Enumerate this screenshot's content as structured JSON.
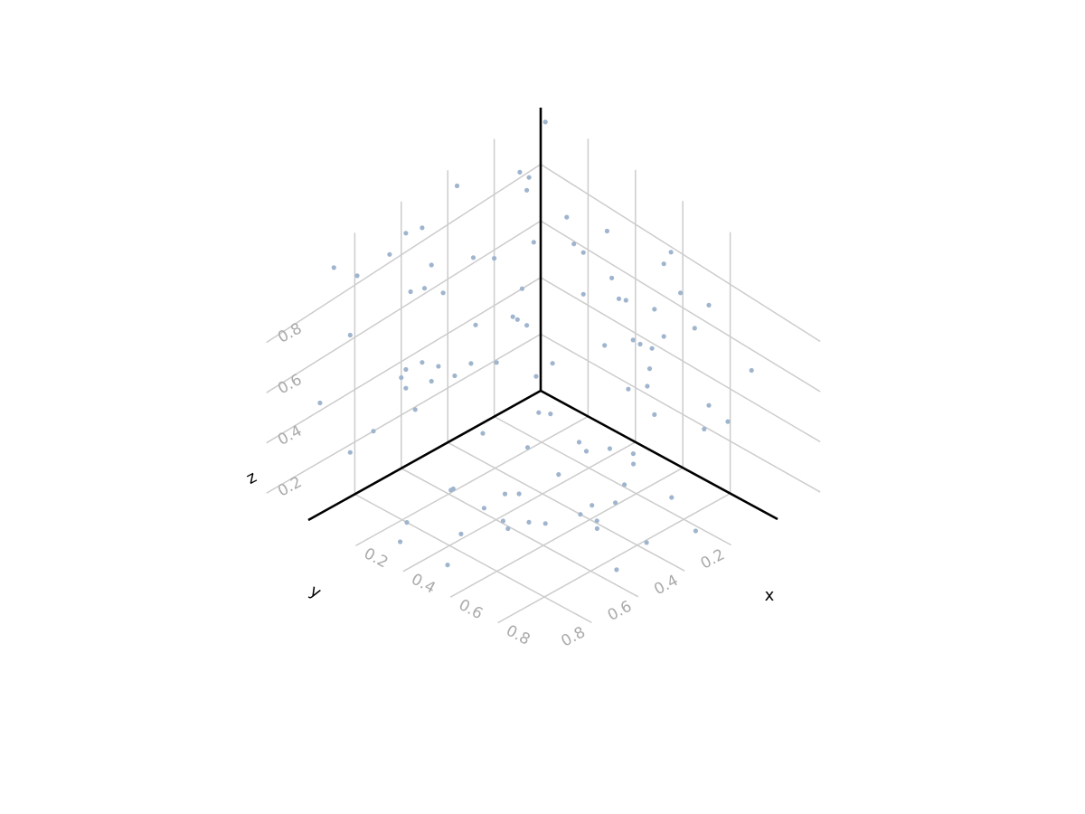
{
  "chart_data": {
    "type": "scatter3d",
    "title": "",
    "xlabel": "x",
    "ylabel": "y",
    "zlabel": "z",
    "xlim": [
      0,
      1
    ],
    "ylim": [
      0,
      1
    ],
    "zlim": [
      0,
      1
    ],
    "xticks": [
      "0.2",
      "0.4",
      "0.6",
      "0.8"
    ],
    "yticks": [
      "0.2",
      "0.4",
      "0.6",
      "0.8"
    ],
    "zticks": [
      "0.2",
      "0.4",
      "0.6",
      "0.8"
    ],
    "grid": true,
    "legend": "none",
    "point_color": "#9fb5ce",
    "points": [
      [
        0.02,
        0.0,
        0.96
      ],
      [
        0.0,
        0.05,
        0.78
      ],
      [
        0.11,
        0.0,
        0.67
      ],
      [
        0.14,
        0.0,
        0.59
      ],
      [
        0.18,
        0.0,
        0.43
      ],
      [
        0.0,
        0.06,
        0.26
      ],
      [
        0.27,
        0.0,
        0.29
      ],
      [
        0.36,
        0.0,
        0.5
      ],
      [
        0.48,
        0.0,
        0.53
      ],
      [
        0.42,
        0.0,
        0.37
      ],
      [
        0.3,
        0.0,
        0.55
      ],
      [
        0.33,
        0.0,
        0.49
      ],
      [
        0.39,
        0.0,
        0.37
      ],
      [
        0.52,
        0.0,
        0.72
      ],
      [
        0.55,
        0.0,
        0.78
      ],
      [
        0.28,
        0.0,
        0.71
      ],
      [
        0.48,
        0.0,
        0.14
      ],
      [
        0.47,
        0.0,
        0.38
      ],
      [
        0.52,
        0.0,
        0.45
      ],
      [
        0.45,
        0.0,
        0.23
      ],
      [
        0.59,
        0.0,
        0.65
      ],
      [
        0.69,
        0.0,
        0.19
      ],
      [
        0.65,
        0.0,
        0.55
      ],
      [
        0.71,
        0.0,
        0.67
      ],
      [
        0.71,
        0.0,
        0.29
      ],
      [
        0.89,
        0.0,
        0.52
      ],
      [
        0.79,
        0.0,
        0.27
      ],
      [
        0.18,
        0.0,
        0.58
      ],
      [
        0.37,
        0.0,
        0.18
      ],
      [
        0.46,
        0.0,
        0.3
      ],
      [
        0.05,
        0.0,
        0.12
      ],
      [
        0.0,
        0.03,
        0.54
      ],
      [
        0.0,
        0.72,
        0.2
      ],
      [
        0.0,
        0.29,
        0.62
      ],
      [
        0.0,
        0.47,
        0.69
      ],
      [
        0.0,
        0.42,
        0.56
      ],
      [
        0.0,
        0.2,
        0.57
      ],
      [
        0.0,
        0.28,
        0.37
      ],
      [
        0.0,
        0.58,
        0.36
      ],
      [
        0.0,
        0.95,
        0.43
      ],
      [
        0.0,
        0.82,
        0.62
      ],
      [
        0.0,
        0.6,
        0.34
      ],
      [
        0.0,
        0.56,
        0.64
      ],
      [
        0.0,
        0.5,
        0.62
      ],
      [
        0.0,
        0.51,
        0.35
      ],
      [
        0.0,
        0.44,
        0.3
      ],
      [
        0.0,
        0.47,
        0.26
      ],
      [
        0.0,
        0.82,
        0.17
      ],
      [
        0.0,
        0.3,
        0.24
      ],
      [
        0.0,
        0.54,
        0.19
      ],
      [
        0.0,
        0.58,
        0.29
      ],
      [
        0.0,
        0.19,
        0.19
      ],
      [
        0.0,
        0.37,
        0.23
      ],
      [
        0.0,
        0.08,
        0.4
      ],
      [
        0.0,
        0.1,
        0.3
      ],
      [
        0.0,
        0.12,
        0.32
      ],
      [
        0.0,
        0.02,
        0.06
      ],
      [
        0.0,
        0.89,
        0.92
      ],
      [
        0.0,
        0.79,
        0.83
      ],
      [
        0.0,
        0.65,
        0.83
      ],
      [
        0.0,
        0.58,
        0.87
      ],
      [
        0.0,
        0.51,
        0.85
      ],
      [
        0.0,
        0.09,
        0.82
      ],
      [
        0.0,
        0.06,
        0.74
      ],
      [
        0.0,
        0.36,
        0.92
      ],
      [
        0.08,
        0.09,
        0.0
      ],
      [
        0.11,
        0.07,
        0.0
      ],
      [
        0.04,
        0.29,
        0.0
      ],
      [
        0.36,
        0.29,
        0.0
      ],
      [
        0.28,
        0.12,
        0.0
      ],
      [
        0.33,
        0.14,
        0.0
      ],
      [
        0.19,
        0.25,
        0.0
      ],
      [
        0.33,
        0.58,
        0.0
      ],
      [
        0.48,
        0.54,
        0.0
      ],
      [
        0.52,
        0.51,
        0.0
      ],
      [
        0.56,
        0.4,
        0.0
      ],
      [
        0.35,
        0.45,
        0.0
      ],
      [
        0.19,
        0.57,
        0.0
      ],
      [
        0.22,
        0.8,
        0.0
      ],
      [
        0.47,
        0.88,
        0.0
      ],
      [
        0.65,
        0.42,
        0.0
      ],
      [
        0.62,
        0.39,
        0.0
      ],
      [
        0.85,
        0.54,
        0.0
      ],
      [
        0.87,
        0.22,
        0.0
      ],
      [
        0.81,
        0.37,
        0.0
      ],
      [
        0.54,
        0.19,
        0.0
      ],
      [
        0.59,
        0.28,
        0.0
      ],
      [
        0.38,
        0.73,
        0.0
      ],
      [
        0.69,
        0.14,
        0.0
      ],
      [
        0.28,
        0.89,
        0.0
      ],
      [
        0.46,
        0.61,
        0.0
      ],
      [
        0.42,
        0.59,
        0.0
      ],
      [
        0.32,
        0.48,
        0.0
      ],
      [
        0.44,
        0.05,
        0.0
      ],
      [
        0.48,
        0.09,
        0.0
      ],
      [
        0.37,
        0.08,
        0.0
      ],
      [
        0.55,
        0.34,
        0.0
      ],
      [
        0.19,
        0.58,
        0.0
      ]
    ]
  }
}
